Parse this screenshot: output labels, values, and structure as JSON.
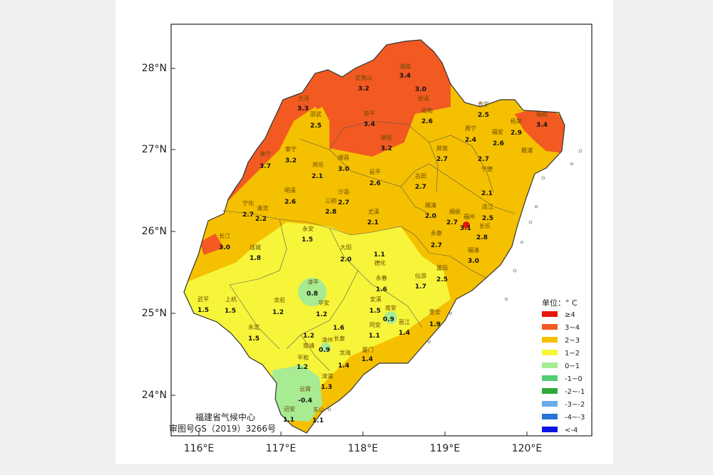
{
  "legend": {
    "title": "单位：° C",
    "items": [
      {
        "label": "≥4",
        "color": "#e8170c"
      },
      {
        "label": "3~4",
        "color": "#f25a22"
      },
      {
        "label": "2~3",
        "color": "#f5c000"
      },
      {
        "label": "1~2",
        "color": "#f7f53a"
      },
      {
        "label": "0~1",
        "color": "#a7eb92"
      },
      {
        "label": "-1~0",
        "color": "#4fcf73"
      },
      {
        "label": "-2~-1",
        "color": "#2eaa36"
      },
      {
        "label": "-3~-2",
        "color": "#6aaae8"
      },
      {
        "label": "-4~-3",
        "color": "#2576d8"
      },
      {
        "label": "<-4",
        "color": "#0d14e6"
      }
    ]
  },
  "axes": {
    "lat_labels": [
      "28°N",
      "27°N",
      "26°N",
      "25°N",
      "24°N"
    ],
    "lon_labels": [
      "116°E",
      "117°E",
      "118°E",
      "119°E",
      "120°E"
    ]
  },
  "credit": {
    "org": "福建省气候中心",
    "code": "审图号GS（2019）3266号"
  },
  "stations": [
    {
      "name": "浦城",
      "value": "3.4"
    },
    {
      "name": "武夷山",
      "value": "3.2"
    },
    {
      "name": "松溪",
      "value": "3.0"
    },
    {
      "name": "光泽",
      "value": "3.3"
    },
    {
      "name": "邵武",
      "value": "2.5"
    },
    {
      "name": "南平",
      "value": "3.4"
    },
    {
      "name": "政和",
      "value": "2.6"
    },
    {
      "name": "寿宁",
      "value": "2.5"
    },
    {
      "name": "柘荣",
      "value": "2.9"
    },
    {
      "name": "福鼎",
      "value": "3.4"
    },
    {
      "name": "周宁",
      "value": "2.4"
    },
    {
      "name": "福安",
      "value": "2.6"
    },
    {
      "name": "泰宁",
      "value": "3.2"
    },
    {
      "name": "建宁",
      "value": "3.7"
    },
    {
      "name": "建瓯",
      "value": "3.2"
    },
    {
      "name": "屏南",
      "value": "2.7"
    },
    {
      "name": "霞浦",
      "value": "2.7"
    },
    {
      "name": "将乐",
      "value": "2.1"
    },
    {
      "name": "顺昌",
      "value": "3.0"
    },
    {
      "name": "延平",
      "value": "2.6"
    },
    {
      "name": "古田",
      "value": "2.7"
    },
    {
      "name": "宁德",
      "value": "2.1"
    },
    {
      "name": "明溪",
      "value": "2.6"
    },
    {
      "name": "三明",
      "value": "2.8"
    },
    {
      "name": "沙县",
      "value": "2.7"
    },
    {
      "name": "宁化",
      "value": "2.7"
    },
    {
      "name": "清流",
      "value": "2.2"
    },
    {
      "name": "尤溪",
      "value": "2.1"
    },
    {
      "name": "闽清",
      "value": "2.0"
    },
    {
      "name": "闽侯",
      "value": "2.7"
    },
    {
      "name": "福州",
      "value": "3.1"
    },
    {
      "name": "连江",
      "value": "2.5"
    },
    {
      "name": "长乐",
      "value": "2.8"
    },
    {
      "name": "永安",
      "value": "1.5"
    },
    {
      "name": "长汀",
      "value": "3.0"
    },
    {
      "name": "连城",
      "value": "1.8"
    },
    {
      "name": "大田",
      "value": "2.0"
    },
    {
      "name": "德化",
      "value": "1.1"
    },
    {
      "name": "永泰",
      "value": "2.7"
    },
    {
      "name": "福清",
      "value": "3.0"
    },
    {
      "name": "莆田",
      "value": "2.5"
    },
    {
      "name": "仙游",
      "value": "1.7"
    },
    {
      "name": "永春",
      "value": "1.6"
    },
    {
      "name": "漳平",
      "value": "0.8"
    },
    {
      "name": "武平",
      "value": "1.5"
    },
    {
      "name": "上杭",
      "value": "1.5"
    },
    {
      "name": "龙岩",
      "value": "1.2"
    },
    {
      "name": "华安",
      "value": "1.2"
    },
    {
      "name": "安溪",
      "value": "1.5"
    },
    {
      "name": "南安",
      "value": "0.9"
    },
    {
      "name": "惠安",
      "value": "1.9"
    },
    {
      "name": "永定",
      "value": "1.5"
    },
    {
      "name": "长泰",
      "value": "1.6"
    },
    {
      "name": "同安",
      "value": "1.1"
    },
    {
      "name": "晋江",
      "value": "1.4"
    },
    {
      "name": "南靖",
      "value": "1.2"
    },
    {
      "name": "漳州",
      "value": "0.9"
    },
    {
      "name": "平和",
      "value": "1.2"
    },
    {
      "name": "龙海",
      "value": "1.4"
    },
    {
      "name": "厦门",
      "value": "1.4"
    },
    {
      "name": "漳浦",
      "value": "1.3"
    },
    {
      "name": "云霄",
      "value": "-0.4"
    },
    {
      "name": "诏安",
      "value": "1.1"
    },
    {
      "name": "东山",
      "value": "1.1"
    }
  ]
}
